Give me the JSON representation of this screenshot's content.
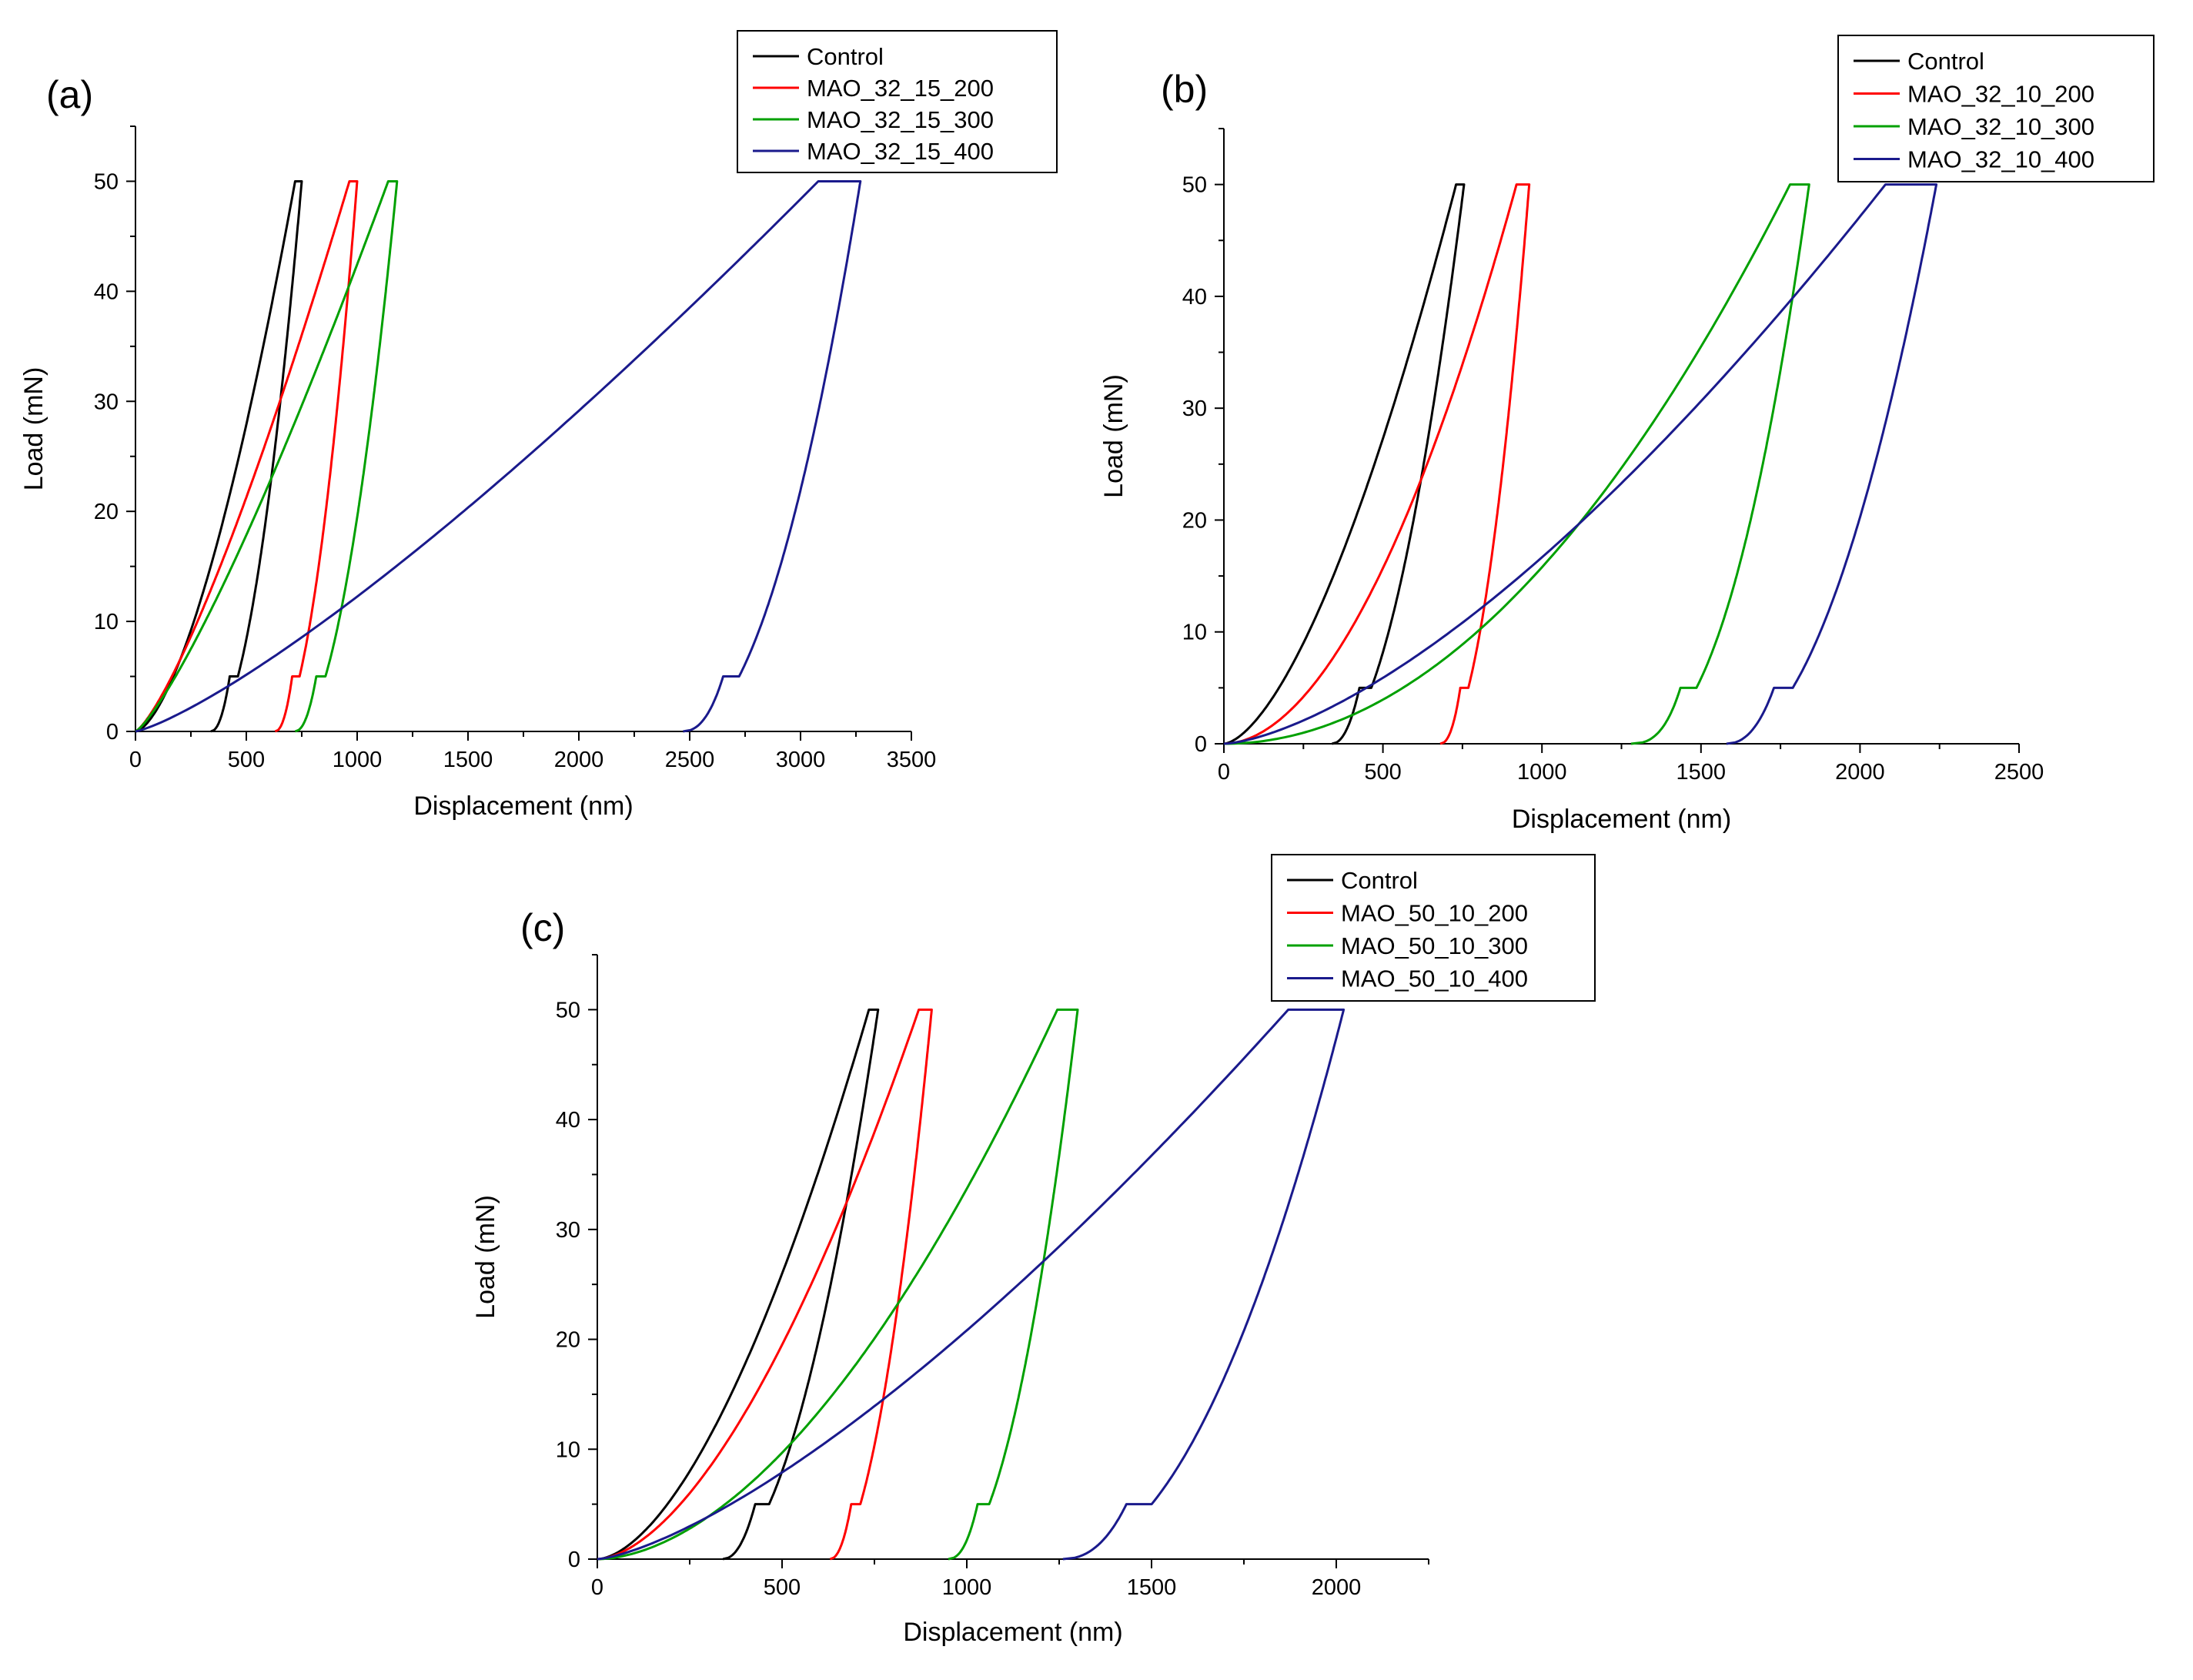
{
  "chart_data": [
    {
      "type": "line",
      "panel_label": "(a)",
      "xlabel": "Displacement (nm)",
      "ylabel": "Load (mN)",
      "xlim": [
        0,
        3500
      ],
      "ylim": [
        0,
        55
      ],
      "xticks": [
        0,
        500,
        1000,
        1500,
        2000,
        2500,
        3000,
        3500
      ],
      "yticks": [
        0,
        10,
        20,
        30,
        40,
        50
      ],
      "legend_position": "top-right",
      "series": [
        {
          "name": "Control",
          "color": "#000000",
          "hold_start": 720,
          "max_depth": 750,
          "final_depth": 340,
          "max_load": 50,
          "load_exp": 1.6,
          "unload_exp": 1.9
        },
        {
          "name": "MAO_32_15_200",
          "color": "#ff0000",
          "hold_start": 965,
          "max_depth": 1000,
          "final_depth": 630,
          "max_load": 50,
          "load_exp": 1.3,
          "unload_exp": 1.9
        },
        {
          "name": "MAO_32_15_300",
          "color": "#00a000",
          "hold_start": 1140,
          "max_depth": 1180,
          "final_depth": 720,
          "max_load": 50,
          "load_exp": 1.25,
          "unload_exp": 1.9
        },
        {
          "name": "MAO_32_15_400",
          "color": "#1a1a8c",
          "hold_start": 3080,
          "max_depth": 3270,
          "final_depth": 2470,
          "max_load": 50,
          "load_exp": 1.25,
          "unload_exp": 2.0
        }
      ]
    },
    {
      "type": "line",
      "panel_label": "(b)",
      "xlabel": "Displacement (nm)",
      "ylabel": "Load (mN)",
      "xlim": [
        0,
        2500
      ],
      "ylim": [
        0,
        55
      ],
      "xticks": [
        0,
        500,
        1000,
        1500,
        2000,
        2500
      ],
      "yticks": [
        0,
        10,
        20,
        30,
        40,
        50
      ],
      "legend_position": "top-right",
      "series": [
        {
          "name": "Control",
          "color": "#000000",
          "hold_start": 730,
          "max_depth": 755,
          "final_depth": 340,
          "max_load": 50,
          "load_exp": 1.6,
          "unload_exp": 1.9
        },
        {
          "name": "MAO_32_10_200",
          "color": "#ff0000",
          "hold_start": 920,
          "max_depth": 960,
          "final_depth": 680,
          "max_load": 50,
          "load_exp": 1.9,
          "unload_exp": 2.0
        },
        {
          "name": "MAO_32_10_300",
          "color": "#00a000",
          "hold_start": 1780,
          "max_depth": 1840,
          "final_depth": 1280,
          "max_load": 50,
          "load_exp": 2.0,
          "unload_exp": 2.3
        },
        {
          "name": "MAO_32_10_400",
          "color": "#1a1a8c",
          "hold_start": 2080,
          "max_depth": 2240,
          "final_depth": 1580,
          "max_load": 50,
          "load_exp": 1.5,
          "unload_exp": 2.0
        }
      ]
    },
    {
      "type": "line",
      "panel_label": "(c)",
      "xlabel": "Displacement (nm)",
      "ylabel": "Load (mN)",
      "xlim": [
        0,
        2250
      ],
      "ylim": [
        0,
        55
      ],
      "xticks": [
        0,
        500,
        1000,
        1500,
        2000
      ],
      "yticks": [
        0,
        10,
        20,
        30,
        40,
        50
      ],
      "legend_position": "top-right",
      "series": [
        {
          "name": "Control",
          "color": "#000000",
          "hold_start": 735,
          "max_depth": 760,
          "final_depth": 340,
          "max_load": 50,
          "load_exp": 1.7,
          "unload_exp": 1.9
        },
        {
          "name": "MAO_50_10_200",
          "color": "#ff0000",
          "hold_start": 870,
          "max_depth": 905,
          "final_depth": 630,
          "max_load": 50,
          "load_exp": 1.7,
          "unload_exp": 1.9
        },
        {
          "name": "MAO_50_10_300",
          "color": "#00a000",
          "hold_start": 1245,
          "max_depth": 1300,
          "final_depth": 950,
          "max_load": 50,
          "load_exp": 1.8,
          "unload_exp": 2.0
        },
        {
          "name": "MAO_50_10_400",
          "color": "#1a1a8c",
          "hold_start": 1870,
          "max_depth": 2020,
          "final_depth": 1260,
          "max_load": 50,
          "load_exp": 1.4,
          "unload_exp": 2.0
        }
      ]
    }
  ]
}
